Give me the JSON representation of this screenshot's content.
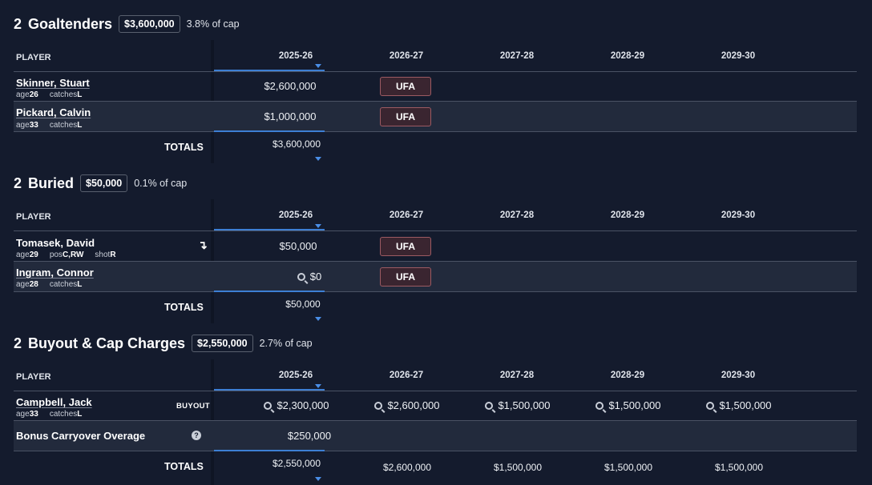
{
  "columns": {
    "player": "PLAYER",
    "years": [
      "2025-26",
      "2026-27",
      "2027-28",
      "2028-29",
      "2029-30"
    ]
  },
  "labels": {
    "totals": "TOTALS",
    "ufa": "UFA",
    "buyout": "BUYOUT",
    "help": "?",
    "age": "age",
    "catches": "catches",
    "pos": "pos",
    "shot": "shot"
  },
  "goaltenders": {
    "count": "2",
    "title": "Goaltenders",
    "amount": "$3,600,000",
    "pct": "3.8% of cap",
    "players": [
      {
        "name": "Skinner, Stuart",
        "age": "26",
        "catches": "L",
        "value": "$2,600,000",
        "status": "UFA"
      },
      {
        "name": "Pickard, Calvin",
        "age": "33",
        "catches": "L",
        "value": "$1,000,000",
        "status": "UFA"
      }
    ],
    "totals": [
      "$3,600,000"
    ]
  },
  "buried": {
    "count": "2",
    "title": "Buried",
    "amount": "$50,000",
    "pct": "0.1% of cap",
    "players": [
      {
        "name": "Tomasek, David",
        "age": "29",
        "pos": "C,RW",
        "shot": "R",
        "value": "$50,000",
        "status": "UFA",
        "marker": "↴"
      },
      {
        "name": "Ingram, Connor",
        "age": "28",
        "catches": "L",
        "value": "$0",
        "status": "UFA"
      }
    ],
    "totals": [
      "$50,000"
    ]
  },
  "buyout": {
    "count": "2",
    "title": "Buyout & Cap Charges",
    "amount": "$2,550,000",
    "pct": "2.7% of cap",
    "players": [
      {
        "name": "Campbell, Jack",
        "age": "33",
        "catches": "L",
        "values": [
          "$2,300,000",
          "$2,600,000",
          "$1,500,000",
          "$1,500,000",
          "$1,500,000"
        ]
      },
      {
        "name": "Bonus Carryover Overage",
        "values": [
          "$250,000"
        ]
      }
    ],
    "totals": [
      "$2,550,000",
      "$2,600,000",
      "$1,500,000",
      "$1,500,000",
      "$1,500,000"
    ]
  }
}
